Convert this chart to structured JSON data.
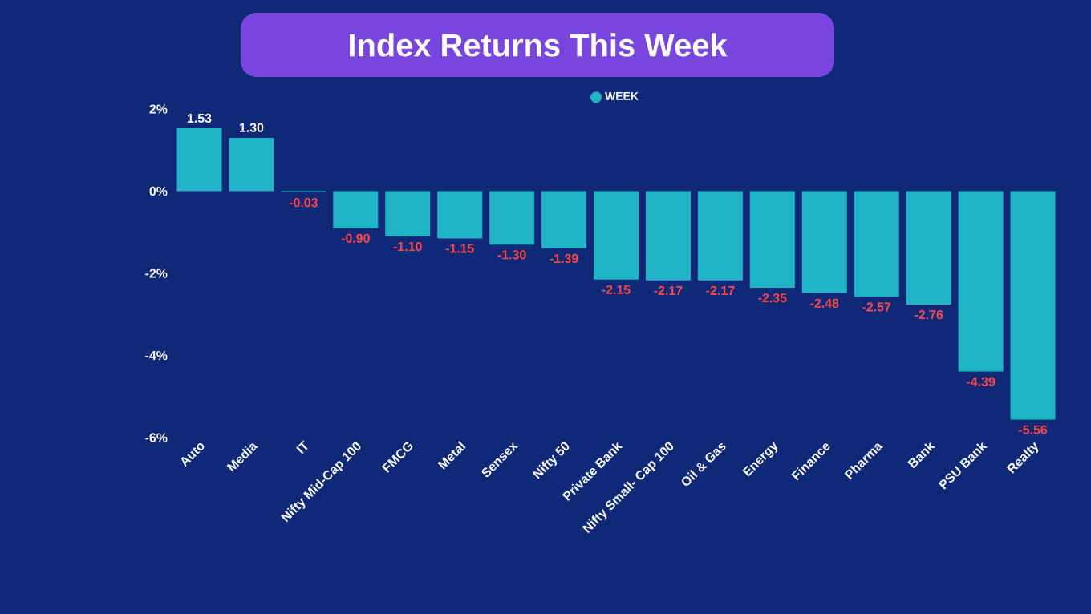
{
  "chart_data": {
    "type": "bar",
    "title": "Index  Returns This Week",
    "categories": [
      "Auto",
      "Media",
      "IT",
      "Nifty Mid-Cap 100",
      "FMCG",
      "Metal",
      "Sensex",
      "Nifty 50",
      "Private Bank",
      "Nifty Small- Cap 100",
      "Oil & Gas",
      "Energy",
      "Finance",
      "Pharma",
      "Bank",
      "PSU Bank",
      "Realty"
    ],
    "series": [
      {
        "name": "WEEK",
        "color": "#1fb5c7",
        "values": [
          1.53,
          1.3,
          -0.03,
          -0.9,
          -1.1,
          -1.15,
          -1.3,
          -1.39,
          -2.15,
          -2.17,
          -2.17,
          -2.35,
          -2.48,
          -2.57,
          -2.76,
          -4.39,
          -5.56
        ],
        "value_labels": [
          "1.53",
          "1.30",
          "-0.03",
          "-0.90",
          "-1.10",
          "-1.15",
          "-1.30",
          "-1.39",
          "-2.15",
          "-2.17",
          "-2.17",
          "-2.35",
          "-2.48",
          "-2.57",
          "-2.76",
          "-4.39",
          "-5.56"
        ]
      }
    ],
    "ylim": [
      -6,
      2
    ],
    "yticks": [
      {
        "value": 2,
        "label": "2%"
      },
      {
        "value": 0,
        "label": "0%"
      },
      {
        "value": -2,
        "label": "-2%"
      },
      {
        "value": -4,
        "label": "-4%"
      },
      {
        "value": -6,
        "label": "-6%"
      }
    ],
    "legend": "top"
  }
}
